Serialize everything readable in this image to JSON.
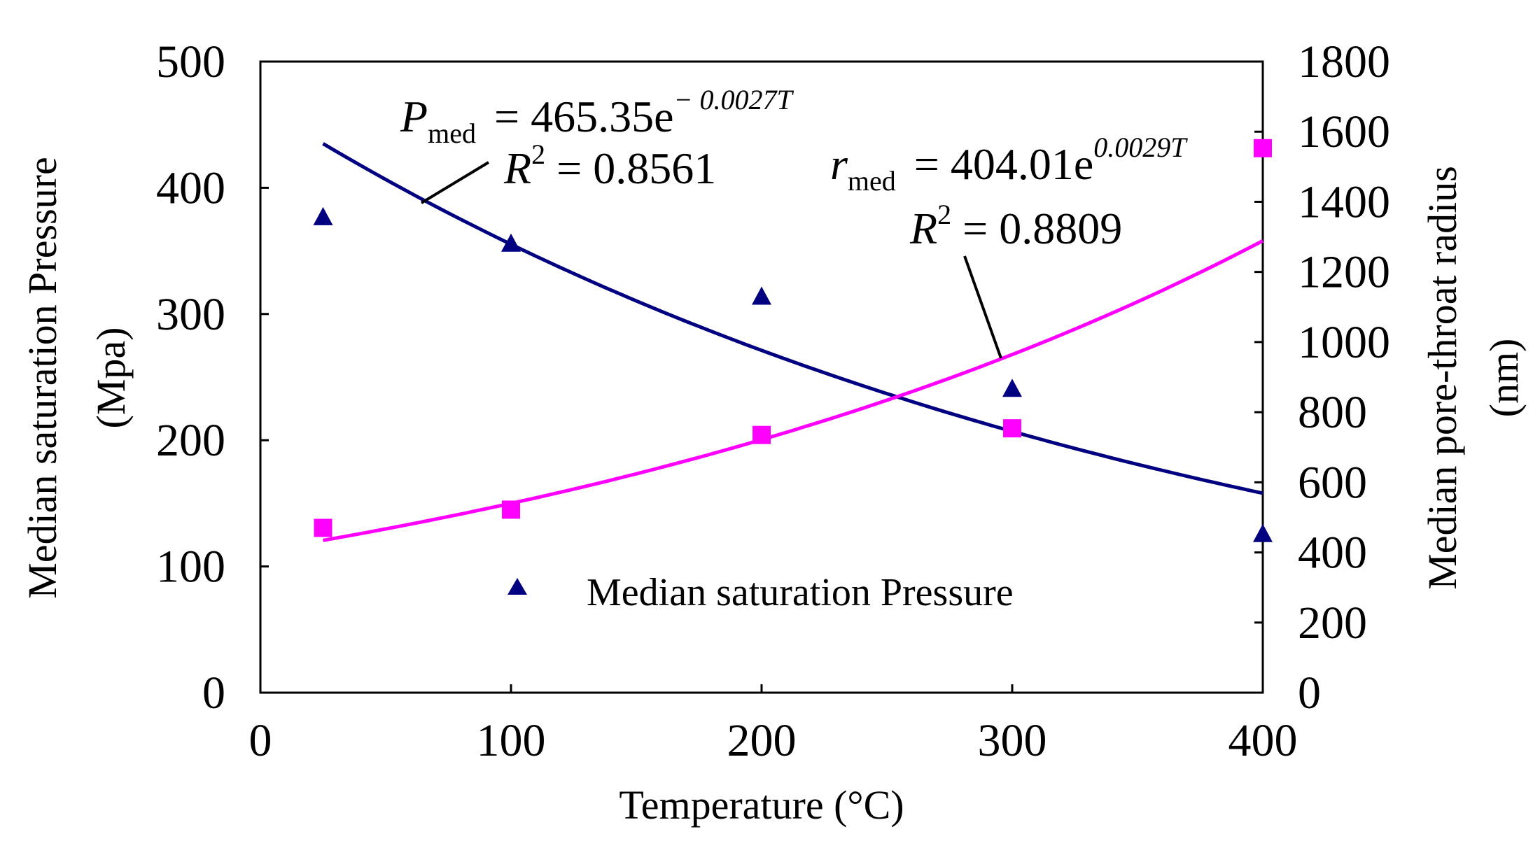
{
  "chart_data": {
    "type": "scatter",
    "xlabel": "Temperature (°C)",
    "ylabel_left_line1": "Median saturation Pressure",
    "ylabel_left_line2": "(Mpa)",
    "ylabel_right_line1": "Median pore-throat radius",
    "ylabel_right_line2": "(nm)",
    "xlim": [
      0,
      400
    ],
    "ylim_left": [
      0,
      500
    ],
    "ylim_right": [
      0,
      1800
    ],
    "x_ticks": [
      0,
      100,
      200,
      300,
      400
    ],
    "y_ticks_left": [
      0,
      100,
      200,
      300,
      400,
      500
    ],
    "y_ticks_right": [
      0,
      200,
      400,
      600,
      800,
      1000,
      1200,
      1400,
      1600,
      1800
    ],
    "grid": false,
    "legend_position": "bottom-center",
    "legend": [
      "Median saturation Pressure"
    ],
    "series": [
      {
        "name": "Median saturation Pressure",
        "axis": "left",
        "marker": "triangle",
        "color": "#000080",
        "x": [
          25,
          100,
          200,
          300,
          400
        ],
        "y": [
          377,
          356,
          314,
          241,
          126
        ]
      },
      {
        "axis": "right",
        "marker": "square",
        "color": "#FF00FF",
        "x": [
          25,
          100,
          200,
          300,
          400
        ],
        "y": [
          470,
          522,
          735,
          754,
          1553
        ]
      }
    ],
    "fits": [
      {
        "axis": "left",
        "color": "#000080",
        "a": 465.35,
        "b": -0.0027,
        "x_range": [
          25,
          400
        ],
        "eq_var": "P",
        "eq_sub": "med",
        "eq_rhs": "= 465.35e",
        "eq_exp": "− 0.0027T",
        "eq_r2_label": "R",
        "eq_r2_value": " = 0.8561"
      },
      {
        "axis": "right",
        "color": "#FF00FF",
        "a": 404.01,
        "b": 0.0029,
        "x_range": [
          25,
          400
        ],
        "eq_var": "r",
        "eq_sub": "med",
        "eq_rhs": "= 404.01e",
        "eq_exp": "0.0029T",
        "eq_r2_label": "R",
        "eq_r2_value": " = 0.8809"
      }
    ]
  }
}
